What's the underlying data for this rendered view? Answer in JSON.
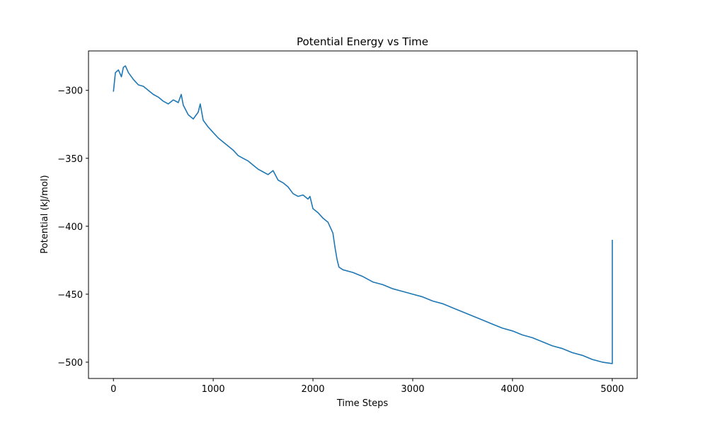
{
  "chart_data": {
    "type": "line",
    "title": "Potential Energy vs Time",
    "xlabel": "Time Steps",
    "ylabel": "Potential (kJ/mol)",
    "xlim": [
      -250,
      5250
    ],
    "ylim": [
      -512,
      -271
    ],
    "xticks": [
      0,
      1000,
      2000,
      3000,
      4000,
      5000
    ],
    "xtick_labels": [
      "0",
      "1000",
      "2000",
      "3000",
      "4000",
      "5000"
    ],
    "yticks": [
      -300,
      -350,
      -400,
      -450,
      -500
    ],
    "ytick_labels": [
      "−300",
      "−350",
      "−400",
      "−450",
      "−500"
    ],
    "grid": false,
    "line_color": "#1f77b4",
    "series": [
      {
        "x": [
          0,
          20,
          50,
          80,
          100,
          120,
          150,
          200,
          250,
          300,
          350,
          400,
          450,
          500,
          550,
          600,
          650,
          680,
          700,
          750,
          800,
          850,
          870,
          900,
          950,
          1000,
          1050,
          1100,
          1150,
          1200,
          1250,
          1300,
          1350,
          1400,
          1450,
          1500,
          1550,
          1600,
          1650,
          1700,
          1750,
          1800,
          1850,
          1900,
          1950,
          1970,
          2000,
          2050,
          2100,
          2150,
          2200,
          2220,
          2240,
          2260,
          2300,
          2400,
          2500,
          2600,
          2700,
          2800,
          2900,
          3000,
          3100,
          3200,
          3300,
          3400,
          3500,
          3600,
          3700,
          3800,
          3900,
          4000,
          4100,
          4200,
          4300,
          4400,
          4500,
          4600,
          4700,
          4800,
          4900,
          4999,
          5000,
          5000
        ],
        "y": [
          -301,
          -287,
          -285,
          -290,
          -283,
          -282,
          -287,
          -292,
          -296,
          -297,
          -300,
          -303,
          -305,
          -308,
          -310,
          -307,
          -309,
          -303,
          -311,
          -318,
          -321,
          -316,
          -310,
          -322,
          -327,
          -331,
          -335,
          -338,
          -341,
          -344,
          -348,
          -350,
          -352,
          -355,
          -358,
          -360,
          -362,
          -359,
          -366,
          -368,
          -371,
          -376,
          -378,
          -377,
          -380,
          -378,
          -387,
          -390,
          -394,
          -397,
          -405,
          -415,
          -424,
          -430,
          -432,
          -434,
          -437,
          -441,
          -443,
          -446,
          -448,
          -450,
          -452,
          -455,
          -457,
          -460,
          -463,
          -466,
          -469,
          -472,
          -475,
          -477,
          -480,
          -482,
          -485,
          -488,
          -490,
          -493,
          -495,
          -498,
          -500,
          -501,
          -501,
          -410
        ]
      }
    ]
  }
}
